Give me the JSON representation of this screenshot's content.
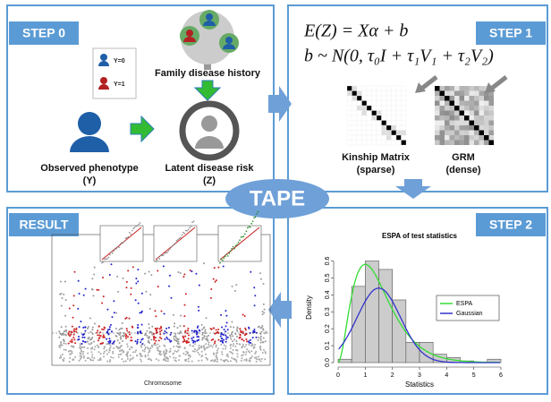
{
  "center": "TAPE",
  "step0": {
    "label": "STEP 0",
    "legend": [
      "Y=0",
      "Y=1"
    ],
    "family": "Family disease history",
    "observed": [
      "Observed phenotype",
      "(Y)"
    ],
    "latent": [
      "Latent disease risk",
      "(Z)"
    ]
  },
  "step1": {
    "label": "STEP 1",
    "formula": [
      "E(Z) = Xα + b",
      "b ~ N(0, τ₀I + τ₁V₁ + τ₂V₂)"
    ],
    "kinship": [
      "Kinship Matrix",
      "(sparse)"
    ],
    "grm": [
      "GRM",
      "(dense)"
    ]
  },
  "result": {
    "label": "RESULT",
    "x_label": "Chromosome"
  },
  "step2": {
    "label": "STEP 2",
    "chart_data": {
      "type": "histogram",
      "title": "ESPA of test statistics",
      "x_label": "Statistics",
      "y_label": "Density",
      "bins": [
        0,
        0.5,
        1,
        1.5,
        2,
        2.5,
        3,
        3.5,
        4,
        4.5,
        5,
        5.5,
        6
      ],
      "values": [
        0.02,
        0.45,
        0.6,
        0.55,
        0.37,
        0.12,
        0.12,
        0.05,
        0.03,
        0.01,
        0,
        0.02
      ],
      "color": "#cccccc",
      "xlim": [
        0,
        6
      ],
      "ylim": [
        0,
        0.65
      ],
      "xticks": [
        0,
        1,
        2,
        3,
        4,
        5,
        6
      ],
      "yticks": [
        {
          "value": 0,
          "label": "0.0"
        },
        0.1,
        0.2,
        0.3,
        0.4,
        0.5,
        0.6
      ],
      "legend": [
        {
          "name": "ESPA",
          "color": "#33dd33"
        },
        {
          "name": "Gaussian",
          "color": "#3333cc"
        }
      ]
    }
  }
}
